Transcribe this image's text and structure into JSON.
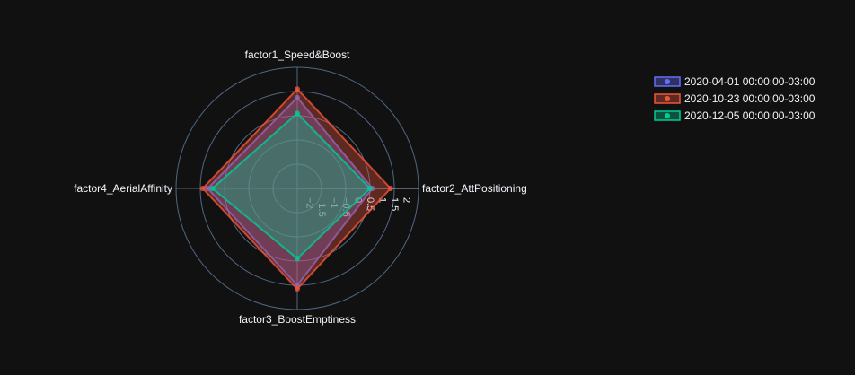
{
  "chart_data": {
    "type": "radar",
    "axes": [
      "factor1_Speed&Boost",
      "factor2_AttPositioning",
      "factor3_BoostEmptiness",
      "factor4_AerialAffinity"
    ],
    "radial_range": [
      -2.5,
      2.5
    ],
    "radial_ticks": [
      {
        "value": -2,
        "label": "−2"
      },
      {
        "value": -1.5,
        "label": "−1.5"
      },
      {
        "value": -1,
        "label": "−1"
      },
      {
        "value": -0.5,
        "label": "−0.5"
      },
      {
        "value": 0,
        "label": "0"
      },
      {
        "value": 0.5,
        "label": "0.5"
      },
      {
        "value": 1,
        "label": "1"
      },
      {
        "value": 1.5,
        "label": "1.5"
      },
      {
        "value": 2,
        "label": "2"
      }
    ],
    "series": [
      {
        "name": "2020-04-01 00:00:00-03:00",
        "values": [
          1.25,
          0.6,
          1.5,
          1.2
        ],
        "color": "#636efa"
      },
      {
        "name": "2020-10-23 00:00:00-03:00",
        "values": [
          1.6,
          1.35,
          1.65,
          1.4
        ],
        "color": "#ef553b"
      },
      {
        "name": "2020-12-05 00:00:00-03:00",
        "values": [
          0.6,
          0.5,
          0.4,
          1.0
        ],
        "color": "#00cc96"
      }
    ],
    "grid": true,
    "legend_position": "top-right"
  }
}
